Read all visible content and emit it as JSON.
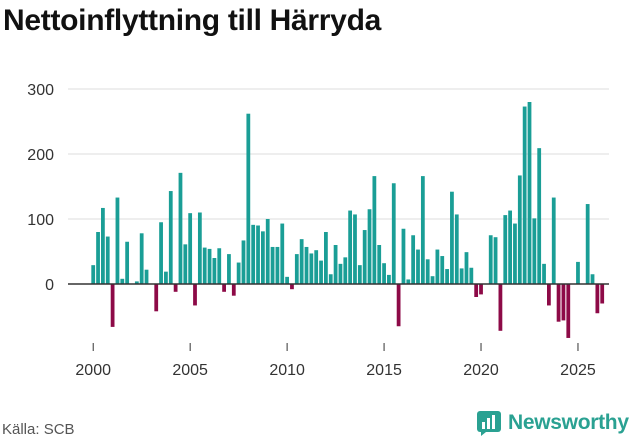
{
  "title": "Nettoinflyttning till Härryda",
  "source": "Källa: SCB",
  "brand": {
    "name": "Newsworthy",
    "icon": "newsworthy-logo-icon",
    "color": "#2aa192"
  },
  "colors": {
    "positive": "#1a9e96",
    "negative": "#8d0a47",
    "grid": "#dddddd",
    "axis": "#333333",
    "tick_text": "#333333"
  },
  "chart_data": {
    "type": "bar",
    "xlabel": "",
    "ylabel": "",
    "ylim": [
      -90,
      310
    ],
    "xlim": [
      1998.7,
      2026.6
    ],
    "yticks": [
      0,
      100,
      200,
      300
    ],
    "yticklabels": [
      "0",
      "100",
      "200",
      "300"
    ],
    "xticks": [
      2000,
      2005,
      2010,
      2015,
      2020,
      2025
    ],
    "xticklabels": [
      "2000",
      "2005",
      "2010",
      "2015",
      "2020",
      "2025"
    ],
    "grid": true,
    "legend": "none",
    "frequency": "quarterly",
    "start_year": 2000,
    "values": [
      29,
      80,
      117,
      73,
      -66,
      133,
      8,
      65,
      0,
      4,
      78,
      22,
      0,
      -42,
      95,
      19,
      143,
      -12,
      171,
      61,
      109,
      -33,
      110,
      56,
      54,
      40,
      55,
      -12,
      46,
      -18,
      33,
      67,
      262,
      91,
      90,
      81,
      100,
      57,
      57,
      93,
      11,
      -8,
      46,
      69,
      57,
      47,
      52,
      36,
      80,
      15,
      60,
      31,
      41,
      113,
      107,
      29,
      83,
      115,
      166,
      60,
      32,
      14,
      155,
      -65,
      85,
      7,
      75,
      53,
      166,
      38,
      12,
      53,
      43,
      23,
      142,
      107,
      24,
      49,
      25,
      -20,
      -16,
      0,
      75,
      72,
      -72,
      106,
      113,
      93,
      167,
      273,
      280,
      101,
      209,
      31,
      -33,
      133,
      -58,
      -56,
      -83,
      0,
      34,
      0,
      123,
      15,
      -45,
      -30
    ]
  }
}
